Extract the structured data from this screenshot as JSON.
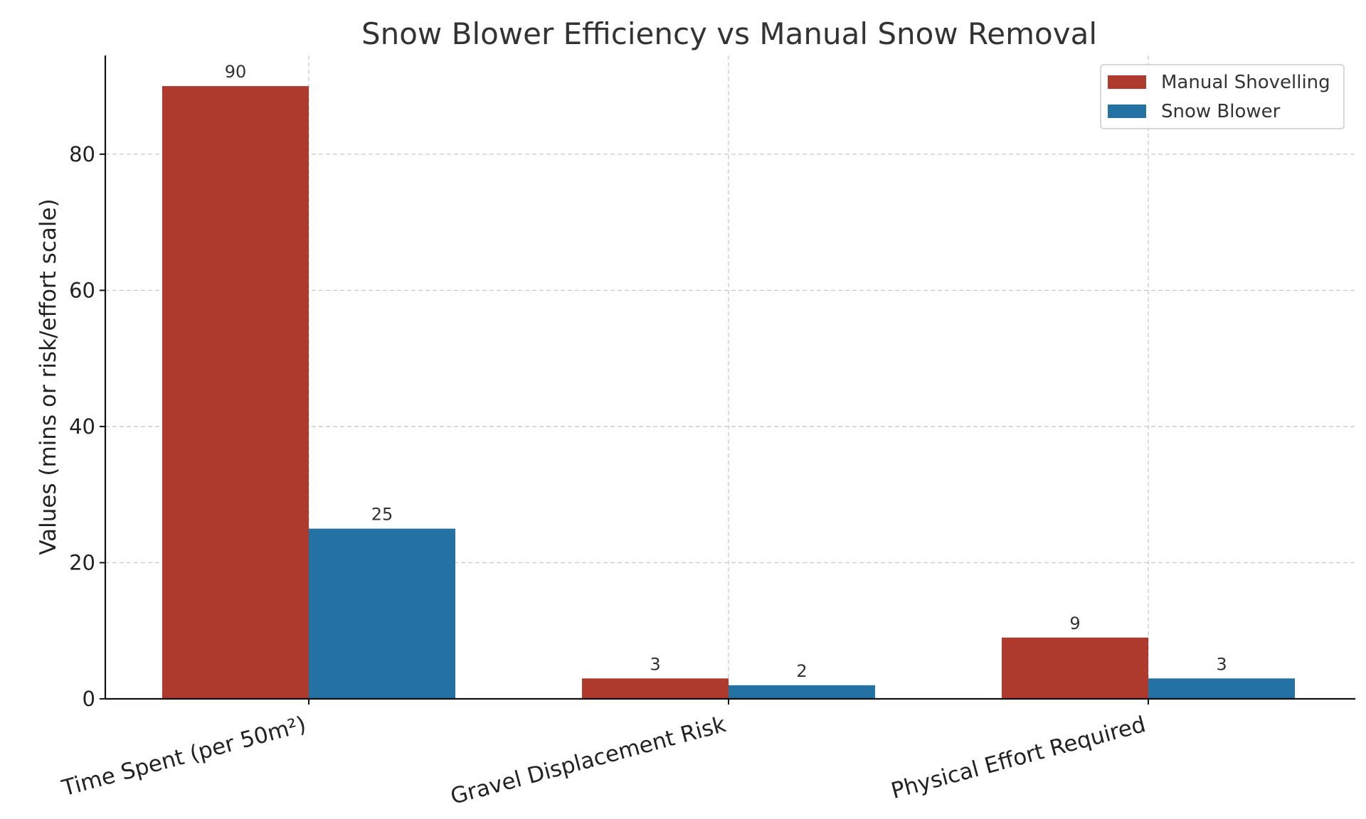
{
  "chart_data": {
    "type": "bar",
    "title": "Snow Blower Efficiency vs Manual Snow Removal",
    "xlabel": "",
    "ylabel": "Values (mins or risk/effort scale)",
    "categories": [
      "Time Spent (per 50m²)",
      "Gravel Displacement Risk",
      "Physical Effort Required"
    ],
    "series": [
      {
        "name": "Manual Shovelling",
        "values": [
          90,
          3,
          9
        ],
        "color": "#ae3a2e"
      },
      {
        "name": "Snow Blower",
        "values": [
          25,
          2,
          3
        ],
        "color": "#2471a3"
      }
    ],
    "ylim": [
      0,
      94.5
    ],
    "yticks": [
      0,
      20,
      40,
      60,
      80
    ],
    "grid": true,
    "legend_position": "top-right"
  }
}
